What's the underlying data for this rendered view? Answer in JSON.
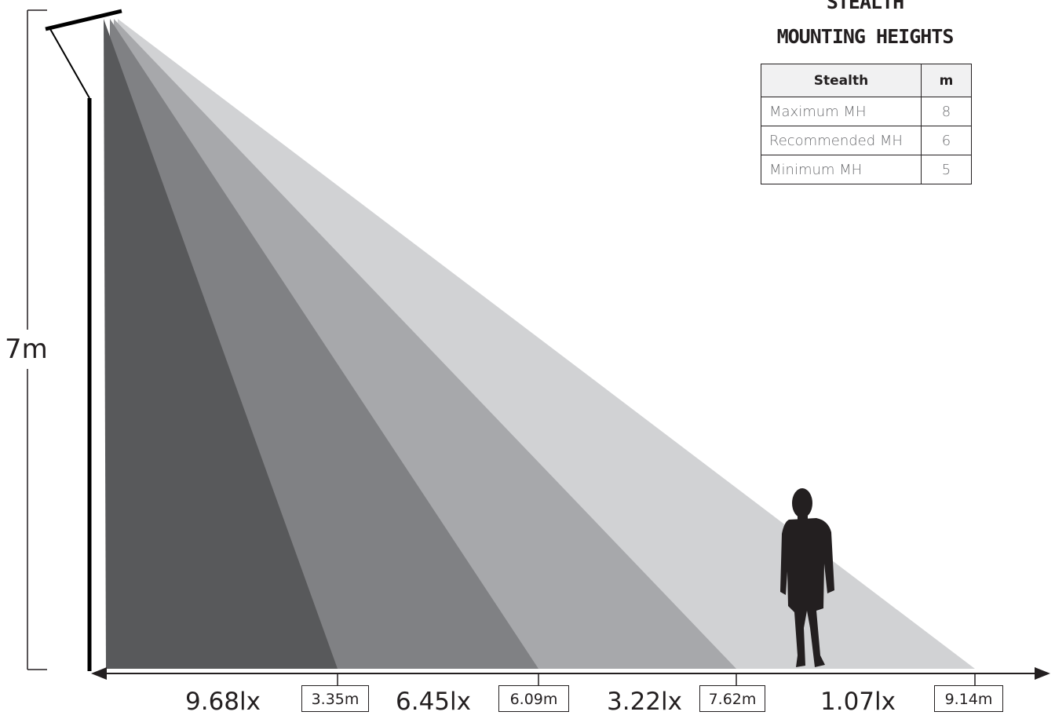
{
  "height_label": "7m",
  "title_line1": "STEALTH",
  "title_line2": "MOUNTING HEIGHTS",
  "table": {
    "headers": [
      "Stealth",
      "m"
    ],
    "rows": [
      {
        "label": "Maximum MH",
        "value": "8"
      },
      {
        "label": "Recommended MH",
        "value": "6"
      },
      {
        "label": "Minimum MH",
        "value": "5"
      }
    ]
  },
  "zones": [
    {
      "lux": "9.68lx",
      "distance": "3.35m",
      "color": "#58595b"
    },
    {
      "lux": "6.45lx",
      "distance": "6.09m",
      "color": "#808184"
    },
    {
      "lux": "3.22lx",
      "distance": "7.62m",
      "color": "#a7a8ab"
    },
    {
      "lux": "1.07lx",
      "distance": "9.14m",
      "color": "#d1d2d4"
    }
  ],
  "colors": {
    "ink": "#231f20",
    "pole": "#000000"
  },
  "icons": {
    "figure": "person-silhouette-icon",
    "fixture": "light-fixture-icon",
    "axis_arrows": "double-arrow-icon"
  }
}
